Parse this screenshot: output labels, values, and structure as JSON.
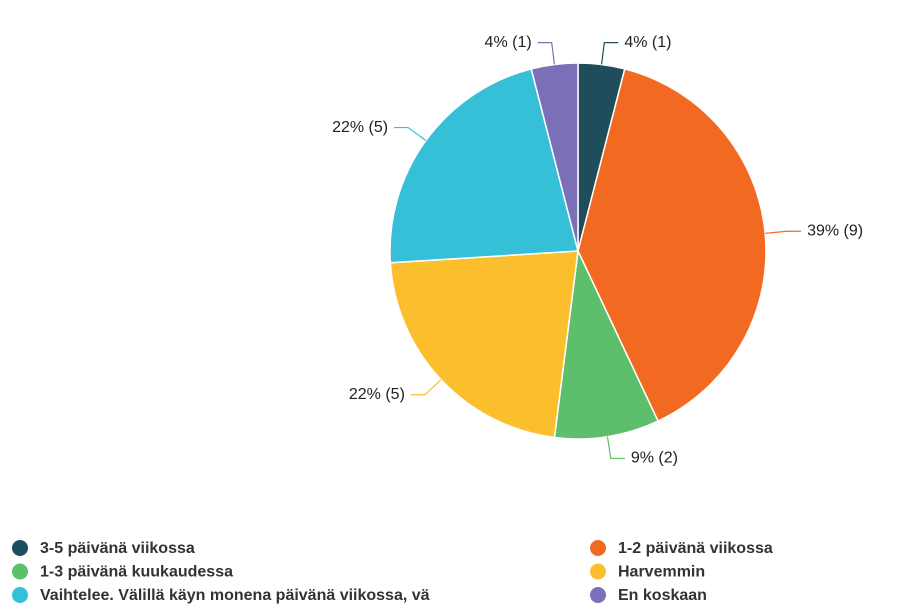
{
  "chart_data": {
    "type": "pie",
    "categories": [
      "3-5 päivänä viikossa",
      "1-2 päivänä viikossa",
      "1-3 päivänä kuukaudessa",
      "Harvemmin",
      "Vaihtelee. Välillä käyn monena päivänä viikossa, vä",
      "En koskaan"
    ],
    "values": [
      4,
      39,
      9,
      22,
      22,
      4
    ],
    "value_labels": [
      "4% (1)",
      "39% (9)",
      "9% (2)",
      "22% (5)",
      "22% (5)",
      "4% (1)"
    ],
    "colors": [
      "#1f4d5b",
      "#f26a22",
      "#5dbe6b",
      "#fbbf2d",
      "#35c0d8",
      "#7b70b7"
    ],
    "legend": "bottom"
  }
}
